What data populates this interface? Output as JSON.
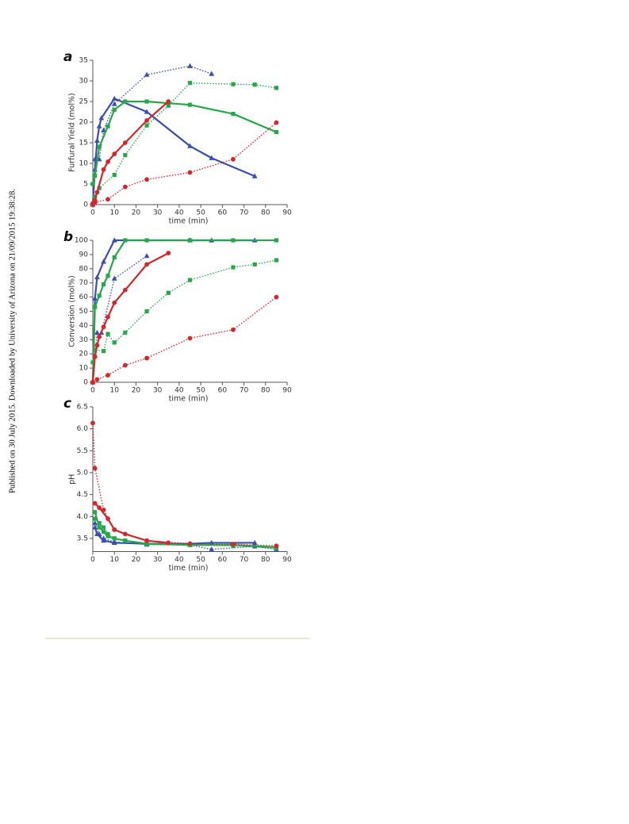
{
  "side_note": "Published on 30 July 2015. Downloaded by University of Arizona on 21/09/2015 19:38:28.",
  "chart_data": [
    {
      "type": "line",
      "label": "a",
      "ylabel": "Furfural Yield (mol%)",
      "xlabel": "time (min)",
      "xlim": [
        0,
        90
      ],
      "xticks": [
        0,
        10,
        20,
        30,
        40,
        50,
        60,
        70,
        80,
        90
      ],
      "ylim": [
        0,
        35
      ],
      "yticks": [
        0,
        5,
        10,
        15,
        20,
        25,
        30,
        35
      ],
      "series": [
        {
          "color": "#3b4fb0",
          "marker": "triangle",
          "line_style": "solid",
          "x": [
            0,
            1,
            2,
            3,
            4,
            10,
            25,
            45,
            55,
            75
          ],
          "values": [
            0,
            8.5,
            15.5,
            19,
            21,
            25.7,
            22.5,
            14.2,
            11.3,
            6.9
          ]
        },
        {
          "color": "#3b4fb0",
          "marker": "triangle",
          "line_style": "dotted",
          "x": [
            0,
            1,
            3,
            5,
            10,
            25,
            45,
            55
          ],
          "values": [
            0,
            11,
            11,
            18,
            24.4,
            31.5,
            33.6,
            31.7
          ]
        },
        {
          "color": "#25a84a",
          "marker": "square",
          "line_style": "solid",
          "x": [
            0,
            1,
            3,
            7,
            10,
            15,
            25,
            45,
            65,
            85
          ],
          "values": [
            5,
            7,
            14,
            19,
            23,
            25,
            25,
            24.2,
            22,
            17.6
          ]
        },
        {
          "color": "#25a84a",
          "marker": "square",
          "line_style": "dotted",
          "x": [
            0,
            1,
            3,
            10,
            15,
            25,
            35,
            45,
            65,
            75,
            85
          ],
          "values": [
            0,
            2,
            4,
            7.2,
            12,
            19.2,
            24,
            29.5,
            29.2,
            29.1,
            28.3
          ]
        },
        {
          "color": "#d5262b",
          "marker": "circle",
          "line_style": "solid",
          "x": [
            0,
            1,
            2,
            5,
            7,
            10,
            15,
            25,
            35
          ],
          "values": [
            0.3,
            1,
            3,
            8.5,
            10.4,
            12.3,
            15,
            20.4,
            25
          ]
        },
        {
          "color": "#d5262b",
          "marker": "circle",
          "line_style": "dotted",
          "x": [
            0,
            1,
            7,
            15,
            25,
            45,
            65,
            85
          ],
          "values": [
            0,
            0.5,
            1.3,
            4.3,
            6.1,
            7.8,
            11,
            19.9
          ]
        }
      ]
    },
    {
      "type": "line",
      "label": "b",
      "ylabel": "Conversion (mol%)",
      "xlabel": "time (min)",
      "xlim": [
        0,
        90
      ],
      "xticks": [
        0,
        10,
        20,
        30,
        40,
        50,
        60,
        70,
        80,
        90
      ],
      "ylim": [
        0,
        100
      ],
      "yticks": [
        0,
        10,
        20,
        30,
        40,
        50,
        60,
        70,
        80,
        90,
        100
      ],
      "series": [
        {
          "color": "#3b4fb0",
          "marker": "triangle",
          "line_style": "solid",
          "x": [
            0,
            1,
            2,
            5,
            10,
            45,
            55,
            75
          ],
          "values": [
            0,
            59,
            74,
            85,
            100,
            100,
            100,
            100
          ]
        },
        {
          "color": "#3b4fb0",
          "marker": "triangle",
          "line_style": "dotted",
          "x": [
            0,
            2,
            4,
            10,
            25
          ],
          "values": [
            0,
            35,
            35,
            73,
            89
          ]
        },
        {
          "color": "#25a84a",
          "marker": "square",
          "line_style": "solid",
          "x": [
            0,
            1,
            3,
            5,
            7,
            10,
            15,
            25,
            45,
            65,
            85
          ],
          "values": [
            0,
            53,
            61,
            69,
            75,
            88,
            100,
            100,
            100,
            100,
            100
          ]
        },
        {
          "color": "#25a84a",
          "marker": "square",
          "line_style": "dotted",
          "x": [
            0,
            1,
            5,
            7,
            10,
            15,
            25,
            35,
            45,
            65,
            75,
            85
          ],
          "values": [
            14,
            23,
            22,
            34,
            28,
            35,
            50,
            63,
            72,
            81,
            83,
            86
          ]
        },
        {
          "color": "#d5262b",
          "marker": "circle",
          "line_style": "solid",
          "x": [
            0,
            1,
            2,
            3,
            5,
            7,
            10,
            15,
            25,
            35
          ],
          "values": [
            0,
            18,
            26,
            32,
            39,
            46,
            56,
            65,
            83,
            91
          ]
        },
        {
          "color": "#d5262b",
          "marker": "circle",
          "line_style": "dotted",
          "x": [
            0,
            2,
            7,
            15,
            25,
            45,
            65,
            85
          ],
          "values": [
            0,
            2,
            5,
            12,
            17,
            31,
            37,
            60
          ]
        }
      ]
    },
    {
      "type": "line",
      "label": "c",
      "ylabel": "pH",
      "xlabel": "time (min)",
      "xlim": [
        0,
        90
      ],
      "xticks": [
        0,
        10,
        20,
        30,
        40,
        50,
        60,
        70,
        80,
        90
      ],
      "ylim": [
        3.2,
        6.5
      ],
      "yticks": [
        3.5,
        {
          "value": 4,
          "label": "4.0"
        },
        4.5,
        {
          "value": 5,
          "label": "5.0"
        },
        5.5,
        {
          "value": 6,
          "label": "6.0"
        },
        6.5
      ],
      "series": [
        {
          "color": "#3b4fb0",
          "marker": "triangle",
          "line_style": "solid",
          "x": [
            1,
            2,
            5,
            10,
            25,
            45,
            55,
            75
          ],
          "values": [
            3.75,
            3.6,
            3.45,
            3.4,
            3.38,
            3.38,
            3.4,
            3.4
          ]
        },
        {
          "color": "#3b4fb0",
          "marker": "triangle",
          "line_style": "dotted",
          "x": [
            1,
            3,
            5,
            10,
            25,
            45,
            55,
            75,
            85
          ],
          "values": [
            3.85,
            3.6,
            3.5,
            3.42,
            3.36,
            3.35,
            3.25,
            3.32,
            3.25
          ]
        },
        {
          "color": "#25a84a",
          "marker": "square",
          "line_style": "solid",
          "x": [
            1,
            3,
            5,
            7,
            10,
            15,
            25,
            45,
            65,
            85
          ],
          "values": [
            4.1,
            3.75,
            3.65,
            3.55,
            3.5,
            3.45,
            3.38,
            3.35,
            3.35,
            3.3
          ]
        },
        {
          "color": "#25a84a",
          "marker": "square",
          "line_style": "dotted",
          "x": [
            1,
            3,
            5,
            7,
            10,
            15,
            25,
            45,
            65,
            85
          ],
          "values": [
            3.95,
            3.85,
            3.75,
            3.6,
            3.5,
            3.45,
            3.37,
            3.35,
            3.33,
            3.28
          ]
        },
        {
          "color": "#d5262b",
          "marker": "circle",
          "line_style": "solid",
          "x": [
            1,
            3,
            7,
            10,
            15,
            25,
            35
          ],
          "values": [
            4.3,
            4.2,
            3.95,
            3.7,
            3.6,
            3.45,
            3.4
          ]
        },
        {
          "color": "#d5262b",
          "marker": "circle",
          "line_style": "dotted",
          "x": [
            0,
            1,
            5,
            10,
            25,
            45,
            65,
            85
          ],
          "values": [
            6.13,
            5.1,
            4.15,
            3.7,
            3.45,
            3.38,
            3.37,
            3.33
          ]
        }
      ]
    }
  ]
}
